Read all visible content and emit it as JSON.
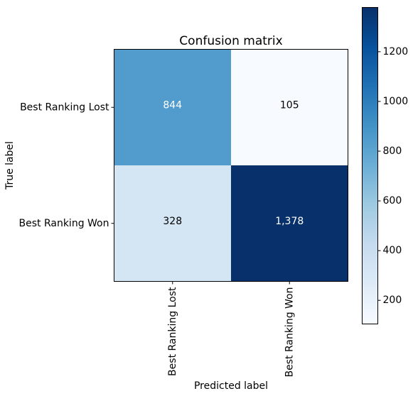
{
  "chart_data": {
    "type": "heatmap",
    "title": "Confusion matrix",
    "xlabel": "Predicted label",
    "ylabel": "True label",
    "x_categories": [
      "Best Ranking Lost",
      "Best Ranking Won"
    ],
    "y_categories": [
      "Best Ranking Lost",
      "Best Ranking Won"
    ],
    "matrix": [
      [
        844,
        105
      ],
      [
        328,
        1378
      ]
    ],
    "cell_labels": [
      [
        "844",
        "105"
      ],
      [
        "328",
        "1,378"
      ]
    ],
    "colormap": "Blues",
    "colorbar": {
      "min": 105,
      "max": 1378,
      "ticks": [
        200,
        400,
        600,
        800,
        1000,
        1200
      ]
    },
    "grid": false
  }
}
